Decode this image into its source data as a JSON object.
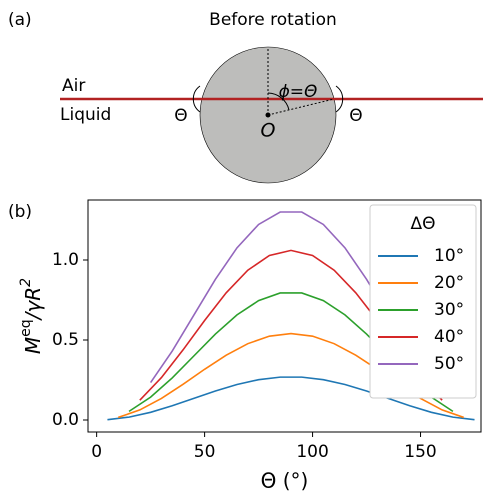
{
  "diagram": {
    "panel_label": "(a)",
    "title": "Before rotation",
    "air": "Air",
    "liquid": "Liquid",
    "angle_left": "Θ",
    "angle_right": "Θ",
    "phi": "ϕ=Θ",
    "origin": "O"
  },
  "chart_data": {
    "type": "line",
    "panel_label": "(b)",
    "x_label": "Θ (°)",
    "y_label": [
      "M",
      "eq",
      "/γR",
      "2"
    ],
    "xlim": [
      -4,
      178
    ],
    "ylim": [
      -0.075,
      1.375
    ],
    "xticks": [
      0,
      50,
      100,
      150
    ],
    "yticks": [
      {
        "value": 0,
        "label": "0.0"
      },
      {
        "value": 0.5,
        "label": "0.5"
      },
      {
        "value": 1,
        "label": "1.0"
      }
    ],
    "legend_title": "ΔΘ",
    "legend_position": "upper right",
    "series": [
      {
        "name": "10°",
        "color": "#1f77b4",
        "x": [
          5,
          15,
          25,
          35,
          45,
          55,
          65,
          75,
          85,
          95,
          105,
          115,
          125,
          135,
          145,
          155,
          165,
          175
        ],
        "values": [
          0.002,
          0.018,
          0.048,
          0.089,
          0.135,
          0.181,
          0.222,
          0.252,
          0.268,
          0.268,
          0.252,
          0.222,
          0.181,
          0.135,
          0.089,
          0.048,
          0.018,
          0.002
        ]
      },
      {
        "name": "20°",
        "color": "#ff7f0e",
        "x": [
          10,
          20,
          30,
          40,
          50,
          60,
          70,
          80,
          90,
          100,
          110,
          120,
          130,
          140,
          150,
          160,
          170
        ],
        "values": [
          0.016,
          0.063,
          0.135,
          0.223,
          0.317,
          0.405,
          0.477,
          0.524,
          0.54,
          0.524,
          0.477,
          0.405,
          0.317,
          0.223,
          0.135,
          0.063,
          0.016
        ]
      },
      {
        "name": "30°",
        "color": "#2ca02c",
        "x": [
          15,
          25,
          35,
          45,
          55,
          65,
          75,
          85,
          95,
          105,
          115,
          125,
          135,
          145,
          155,
          165
        ],
        "values": [
          0.054,
          0.143,
          0.263,
          0.4,
          0.537,
          0.657,
          0.746,
          0.794,
          0.794,
          0.746,
          0.657,
          0.537,
          0.4,
          0.263,
          0.143,
          0.054
        ]
      },
      {
        "name": "40°",
        "color": "#d62728",
        "x": [
          20,
          30,
          40,
          50,
          60,
          70,
          80,
          90,
          100,
          110,
          120,
          130,
          140,
          150,
          160
        ],
        "values": [
          0.124,
          0.265,
          0.438,
          0.622,
          0.795,
          0.936,
          1.028,
          1.06,
          1.028,
          0.936,
          0.795,
          0.622,
          0.438,
          0.265,
          0.124
        ]
      },
      {
        "name": "50°",
        "color": "#9467bd",
        "x": [
          25,
          35,
          45,
          55,
          65,
          75,
          85,
          95,
          105,
          115,
          125,
          135,
          145,
          155
        ],
        "values": [
          0.234,
          0.431,
          0.655,
          0.879,
          1.076,
          1.222,
          1.3,
          1.3,
          1.222,
          1.076,
          0.879,
          0.655,
          0.431,
          0.234
        ]
      }
    ]
  }
}
